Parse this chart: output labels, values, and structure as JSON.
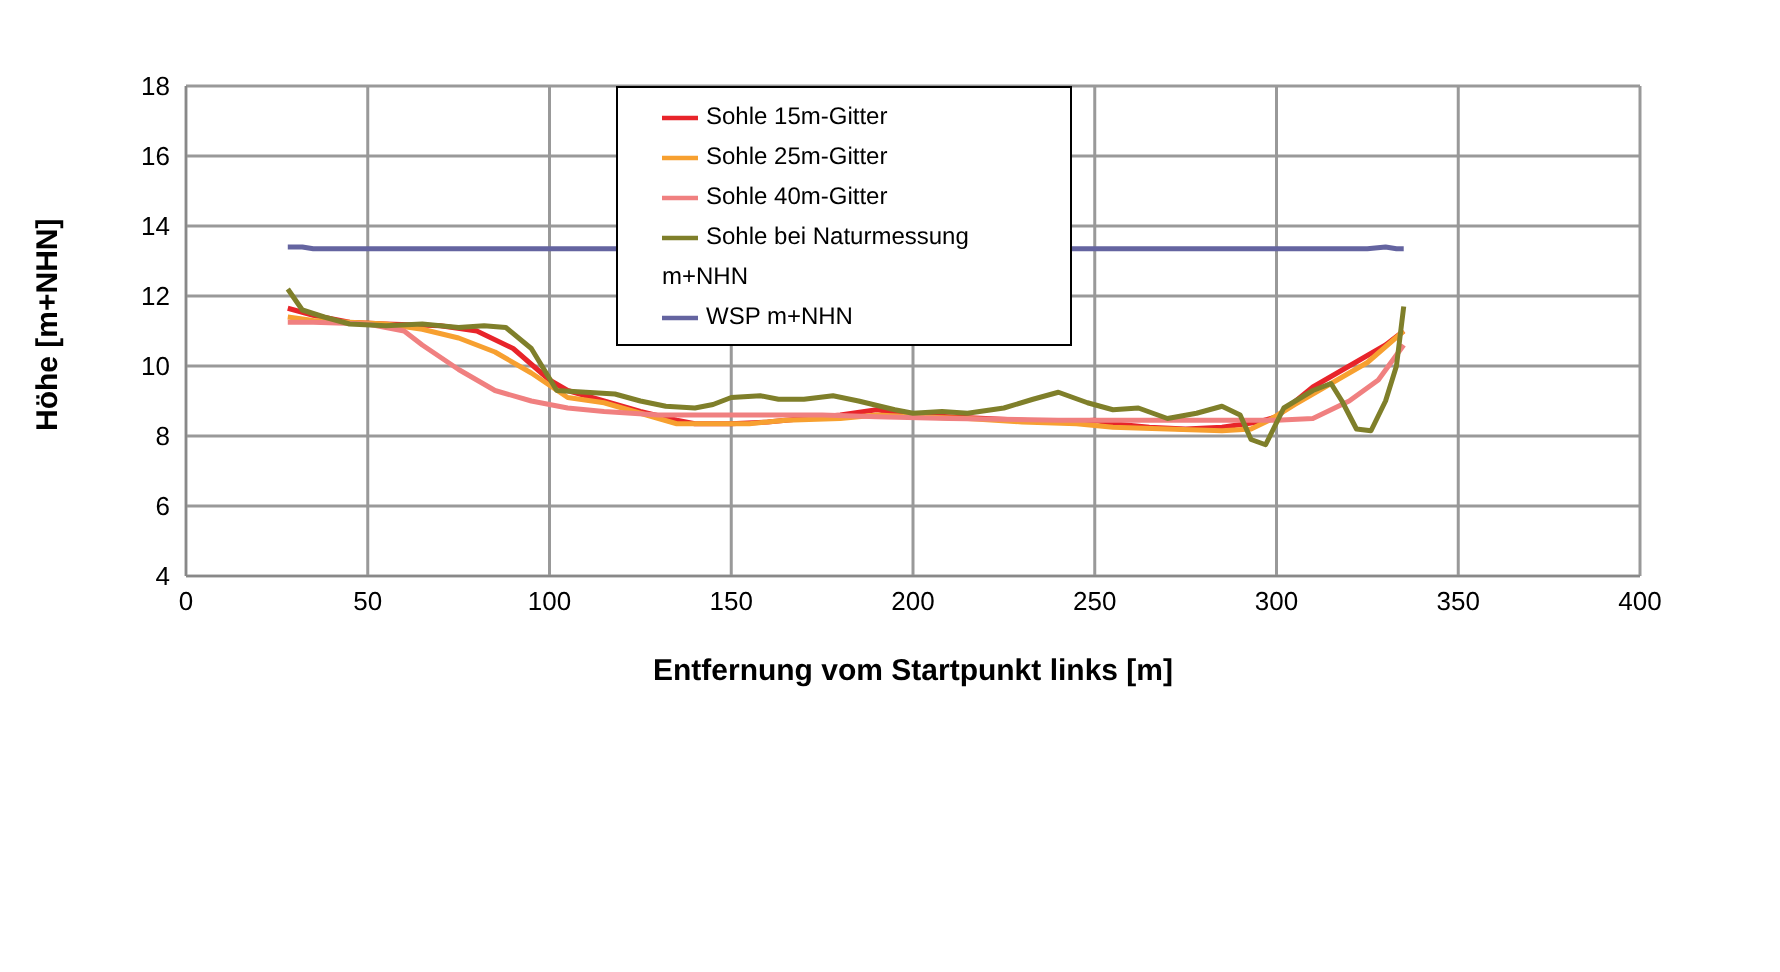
{
  "chart_data": {
    "type": "line",
    "xlabel": "Entfernung vom Startpunkt links [m]",
    "ylabel": "Höhe [m+NHN]",
    "xlim": [
      0,
      400
    ],
    "xticks": [
      0,
      50,
      100,
      150,
      200,
      250,
      300,
      350,
      400
    ],
    "ylim": [
      4,
      18
    ],
    "yticks": [
      4,
      6,
      8,
      10,
      12,
      14,
      16,
      18
    ],
    "grid": true,
    "legend": "top",
    "marker": "none",
    "line_style": "solid",
    "series": [
      {
        "name": "Sohle 15m-Gitter",
        "color": "#e8242a",
        "x": [
          28,
          35,
          45,
          55,
          70,
          80,
          90,
          100,
          105,
          115,
          125,
          135,
          140,
          150,
          160,
          170,
          180,
          190,
          200,
          210,
          220,
          230,
          240,
          250,
          255,
          265,
          275,
          285,
          295,
          300,
          310,
          320,
          330,
          335
        ],
        "values": [
          11.65,
          11.45,
          11.25,
          11.2,
          11.15,
          11.0,
          10.5,
          9.6,
          9.3,
          9.0,
          8.7,
          8.45,
          8.35,
          8.35,
          8.4,
          8.5,
          8.6,
          8.75,
          8.6,
          8.55,
          8.5,
          8.45,
          8.4,
          8.45,
          8.35,
          8.25,
          8.2,
          8.25,
          8.4,
          8.55,
          9.4,
          10.0,
          10.6,
          11.0
        ]
      },
      {
        "name": "Sohle 25m-Gitter",
        "color": "#f7a030",
        "x": [
          28,
          35,
          45,
          55,
          65,
          75,
          85,
          95,
          105,
          115,
          125,
          135,
          145,
          155,
          165,
          180,
          190,
          200,
          215,
          230,
          245,
          255,
          270,
          285,
          293,
          298,
          305,
          315,
          325,
          335
        ],
        "values": [
          11.4,
          11.3,
          11.25,
          11.2,
          11.05,
          10.8,
          10.4,
          9.8,
          9.1,
          8.95,
          8.65,
          8.35,
          8.35,
          8.35,
          8.45,
          8.5,
          8.6,
          8.55,
          8.5,
          8.4,
          8.35,
          8.25,
          8.2,
          8.15,
          8.2,
          8.45,
          8.9,
          9.5,
          10.1,
          11.0
        ]
      },
      {
        "name": "Sohle 40m-Gitter",
        "color": "#f08080",
        "x": [
          28,
          35,
          50,
          60,
          65,
          75,
          85,
          95,
          105,
          115,
          130,
          150,
          175,
          190,
          210,
          240,
          270,
          300,
          310,
          320,
          328,
          335
        ],
        "values": [
          11.25,
          11.25,
          11.2,
          11.0,
          10.6,
          9.9,
          9.3,
          9.0,
          8.8,
          8.7,
          8.6,
          8.6,
          8.6,
          8.55,
          8.5,
          8.45,
          8.45,
          8.45,
          8.5,
          9.0,
          9.6,
          10.6
        ]
      },
      {
        "name": "Sohle bei Naturmessung m+NHN",
        "color": "#7f7f2a",
        "x": [
          28,
          32,
          38,
          45,
          55,
          65,
          75,
          82,
          88,
          95,
          102,
          110,
          118,
          125,
          132,
          140,
          145,
          150,
          158,
          163,
          170,
          178,
          185,
          195,
          200,
          208,
          215,
          225,
          233,
          240,
          248,
          255,
          262,
          270,
          278,
          285,
          290,
          293,
          297,
          302,
          310,
          315,
          318,
          322,
          326,
          330,
          333,
          335
        ],
        "values": [
          12.2,
          11.6,
          11.4,
          11.2,
          11.15,
          11.2,
          11.1,
          11.15,
          11.1,
          10.5,
          9.3,
          9.25,
          9.2,
          9.0,
          8.85,
          8.8,
          8.9,
          9.1,
          9.15,
          9.05,
          9.05,
          9.15,
          9.0,
          8.75,
          8.65,
          8.7,
          8.65,
          8.8,
          9.05,
          9.25,
          8.95,
          8.75,
          8.8,
          8.5,
          8.65,
          8.85,
          8.6,
          7.9,
          7.75,
          8.8,
          9.3,
          9.5,
          9.0,
          8.2,
          8.15,
          9.0,
          10.0,
          11.7
        ]
      },
      {
        "name": "WSP m+NHN",
        "color": "#6464a0",
        "x": [
          28,
          32,
          35,
          100,
          200,
          300,
          325,
          330,
          333,
          335
        ],
        "values": [
          13.4,
          13.4,
          13.35,
          13.35,
          13.35,
          13.35,
          13.35,
          13.4,
          13.35,
          13.35
        ]
      }
    ]
  }
}
